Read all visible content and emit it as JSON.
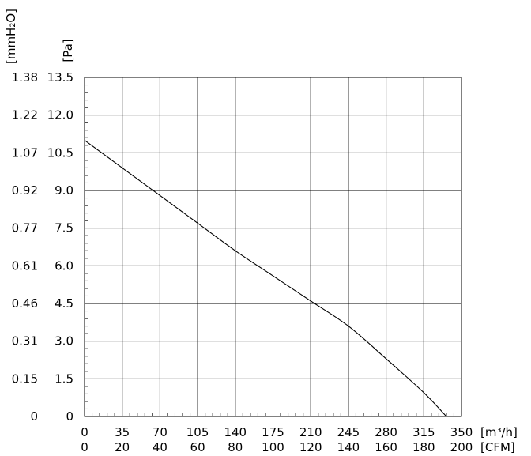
{
  "chart_data": {
    "type": "line",
    "title": "",
    "y_left_outer_unit": "[mmH₂O]",
    "y_left_inner_unit": "[Pa]",
    "x_unit_primary": "[m³/h]",
    "x_unit_secondary": "[CFM]",
    "x_primary_ticks": [
      "0",
      "35",
      "70",
      "105",
      "140",
      "175",
      "210",
      "245",
      "280",
      "315",
      "350"
    ],
    "x_secondary_ticks": [
      "0",
      "20",
      "40",
      "60",
      "80",
      "100",
      "120",
      "140",
      "160",
      "180",
      "200"
    ],
    "y_pa_ticks": [
      "0",
      "1.5",
      "3.0",
      "4.5",
      "6.0",
      "7.5",
      "9.0",
      "10.5",
      "12.0",
      "13.5"
    ],
    "y_mmh2o_ticks": [
      "0",
      "0.15",
      "0.31",
      "0.46",
      "0.61",
      "0.77",
      "0.92",
      "1.07",
      "1.22",
      "1.38"
    ],
    "xlim": [
      0,
      350
    ],
    "ylim": [
      0,
      13.5
    ],
    "grid": true,
    "series": [
      {
        "x_m3h": [
          0,
          35,
          70,
          105,
          140,
          175,
          210,
          245,
          280,
          315,
          336
        ],
        "y_pa": [
          11.0,
          9.9,
          8.8,
          7.7,
          6.6,
          5.6,
          4.6,
          3.6,
          2.3,
          0.95,
          0
        ]
      }
    ]
  }
}
